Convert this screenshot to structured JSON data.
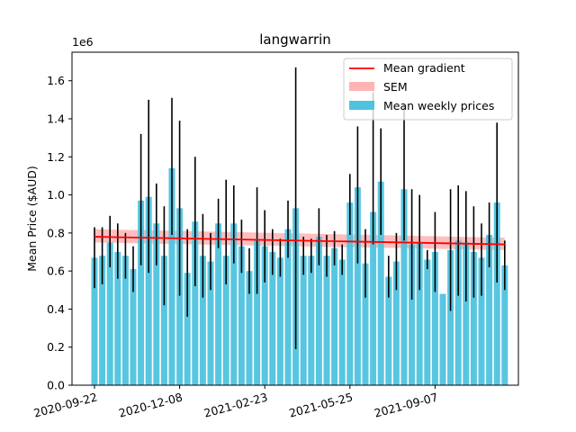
{
  "chart_data": {
    "type": "bar",
    "title": "langwarrin",
    "xlabel": "",
    "ylabel": "Mean Price ($AUD)",
    "y_offset_label": "1e6",
    "ylim": [
      0,
      1.75
    ],
    "y_ticks": [
      0.0,
      0.2,
      0.4,
      0.6,
      0.8,
      1.0,
      1.2,
      1.4,
      1.6
    ],
    "y_tick_labels": [
      "0.0",
      "0.2",
      "0.4",
      "0.6",
      "0.8",
      "1.0",
      "1.2",
      "1.4",
      "1.6"
    ],
    "x_tick_labels": [
      "2020-09-22",
      "2020-12-08",
      "2021-02-23",
      "2021-05-25",
      "2021-09-07"
    ],
    "x_tick_positions": [
      0,
      11,
      22,
      33,
      44
    ],
    "legend": {
      "placement": "top-right",
      "entries": [
        "Mean gradient",
        "SEM",
        "Mean weekly prices"
      ]
    },
    "colors": {
      "bars": "#4fc3de",
      "gradient": "#ff0000",
      "sem": "#ffb3b3",
      "errorbar": "#000000"
    },
    "series": [
      {
        "name": "Mean weekly prices",
        "values": [
          0.67,
          0.68,
          0.75,
          0.7,
          0.68,
          0.61,
          0.97,
          0.99,
          0.85,
          0.68,
          1.14,
          0.93,
          0.59,
          0.86,
          0.68,
          0.65,
          0.85,
          0.68,
          0.85,
          0.73,
          0.6,
          0.76,
          0.73,
          0.7,
          0.67,
          0.82,
          0.93,
          0.68,
          0.68,
          0.78,
          0.68,
          0.72,
          0.66,
          0.96,
          1.04,
          0.64,
          0.91,
          1.07,
          0.57,
          0.65,
          1.03,
          0.74,
          0.75,
          0.66,
          0.7,
          0.48,
          0.71,
          0.76,
          0.75,
          0.7,
          0.67,
          0.79,
          0.96,
          0.63
        ],
        "err_low": [
          0.51,
          0.53,
          0.62,
          0.56,
          0.56,
          0.49,
          0.63,
          0.59,
          0.63,
          0.42,
          0.79,
          0.47,
          0.36,
          0.52,
          0.46,
          0.5,
          0.72,
          0.53,
          0.64,
          0.59,
          0.48,
          0.48,
          0.54,
          0.58,
          0.57,
          0.67,
          0.19,
          0.58,
          0.59,
          0.63,
          0.57,
          0.63,
          0.58,
          0.79,
          0.64,
          0.46,
          0.74,
          0.79,
          0.46,
          0.5,
          0.76,
          0.45,
          0.5,
          0.61,
          0.49,
          0.48,
          0.39,
          0.47,
          0.44,
          0.46,
          0.47,
          0.62,
          0.54,
          0.5
        ],
        "err_high": [
          0.83,
          0.83,
          0.89,
          0.85,
          0.8,
          0.73,
          1.32,
          1.5,
          1.06,
          0.94,
          1.51,
          1.39,
          0.82,
          1.2,
          0.9,
          0.8,
          0.98,
          1.08,
          1.05,
          0.87,
          0.72,
          1.04,
          0.92,
          0.82,
          0.77,
          0.97,
          1.67,
          0.78,
          0.77,
          0.93,
          0.79,
          0.81,
          0.74,
          1.11,
          1.36,
          0.82,
          1.54,
          1.35,
          0.68,
          0.8,
          1.48,
          1.03,
          1.0,
          0.71,
          0.91,
          0.48,
          1.03,
          1.05,
          1.02,
          0.94,
          0.85,
          0.96,
          1.38,
          0.76
        ]
      }
    ],
    "gradient": {
      "start": 0.78,
      "end": 0.74
    },
    "sem_band": {
      "start_low": 0.75,
      "start_high": 0.82,
      "end_low": 0.71,
      "end_high": 0.775
    }
  }
}
